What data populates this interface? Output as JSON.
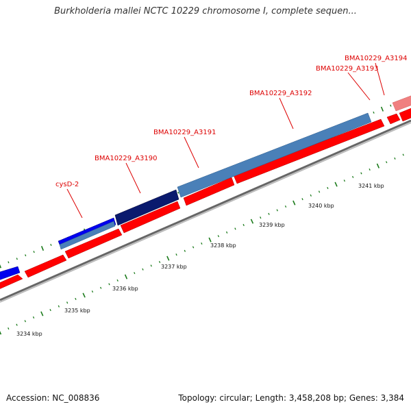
{
  "title": "Burkholderia mallei NCTC 10229 chromosome I, complete sequen...",
  "footer": {
    "accession": "Accession: NC_008836",
    "topology": "Topology: circular; Length: 3,458,208 bp; Genes: 3,384"
  },
  "gene_labels": [
    "cysD-2",
    "BMA10229_A3190",
    "BMA10229_A3191",
    "BMA10229_A3192",
    "BMA10229_A3193",
    "BMA10229_A3194"
  ],
  "kbp_labels": [
    "3234 kbp",
    "3235 kbp",
    "3236 kbp",
    "3237 kbp",
    "3238 kbp",
    "3239 kbp",
    "3240 kbp",
    "3241 kbp"
  ],
  "colors": {
    "forward_gene": "#ff0000",
    "gene_light_blue": "#4a80b8",
    "gene_blue": "#0000ee",
    "gene_navy": "#0a1a6e",
    "gene_faded": "#f08080",
    "label": "#dd0000",
    "tick": "#1a7a1a",
    "backbone": "#888888"
  }
}
